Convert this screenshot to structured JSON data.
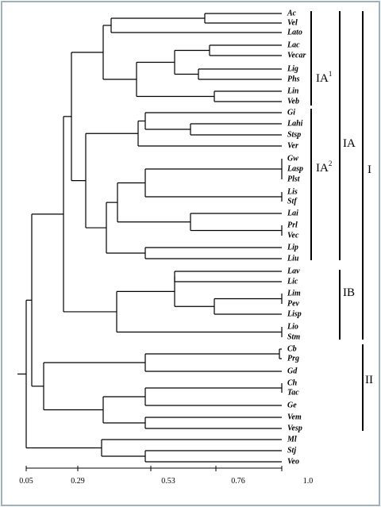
{
  "leaves": [
    "Ac",
    "Vel",
    "Lato",
    "Lac",
    "Vecar",
    "Lig",
    "Phs",
    "Lin",
    "Veb",
    "Gi",
    "Lahi",
    "Stsp",
    "Ver",
    "Gw",
    "Lasp",
    "Plst",
    "Lis",
    "Stf",
    "Lai",
    "Prl",
    "Vec",
    "Lip",
    "Liu",
    "Lav",
    "Lic",
    "Lim",
    "Pev",
    "Lisp",
    "Lio",
    "Stm",
    "Cb",
    "Prg",
    "Gd",
    "Ch",
    "Tac",
    "Ge",
    "Vem",
    "Vesp",
    "Ml",
    "Stj",
    "Veo"
  ],
  "groups": [
    {
      "label": "IA",
      "sup": "1"
    },
    {
      "label": "IA",
      "sup": "2"
    },
    {
      "label": "IA"
    },
    {
      "label": "IB"
    },
    {
      "label": "I"
    },
    {
      "label": "II"
    }
  ],
  "axis": {
    "ticks": [
      "0.05",
      "0.29",
      "0.53",
      "0.76",
      "1.0"
    ]
  }
}
